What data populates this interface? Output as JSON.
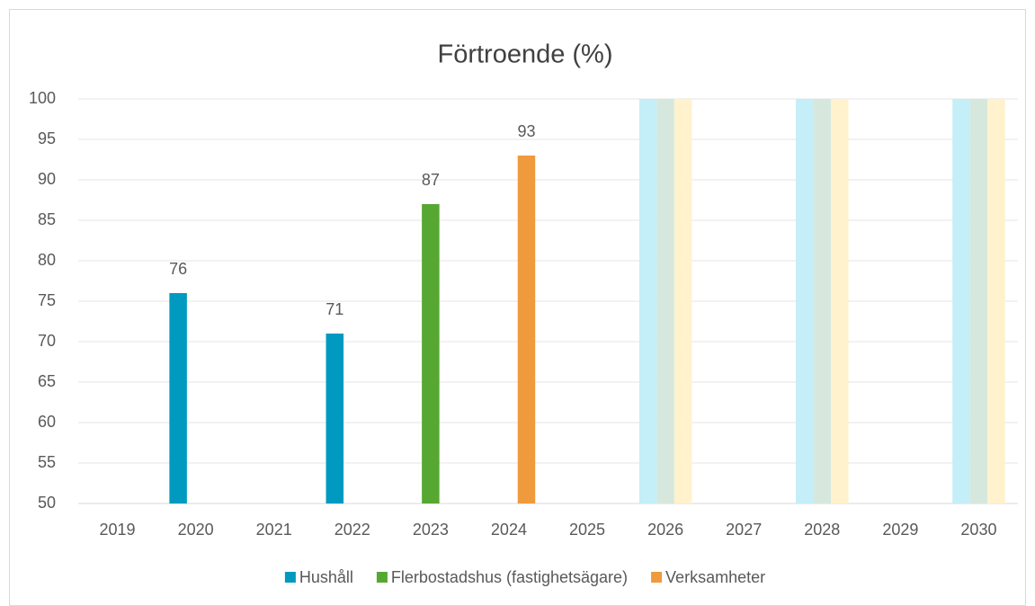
{
  "chart_data": {
    "type": "bar",
    "title": "Förtroende (%)",
    "categories": [
      "2019",
      "2020",
      "2021",
      "2022",
      "2023",
      "2024",
      "2025",
      "2026",
      "2027",
      "2028",
      "2029",
      "2030"
    ],
    "series": [
      {
        "name": "Hushåll",
        "color": "#0099bf",
        "target_color": "#c4eef8",
        "values": [
          null,
          76,
          null,
          71,
          null,
          null,
          null,
          null,
          null,
          null,
          null,
          null
        ],
        "targets": [
          null,
          null,
          null,
          null,
          null,
          null,
          null,
          100,
          null,
          100,
          null,
          100
        ]
      },
      {
        "name": "Flerbostadshus (fastighetsägare)",
        "color": "#56a833",
        "target_color": "#d6e8de",
        "values": [
          null,
          null,
          null,
          null,
          87,
          null,
          null,
          null,
          null,
          null,
          null,
          null
        ],
        "targets": [
          null,
          null,
          null,
          null,
          null,
          null,
          null,
          100,
          null,
          100,
          null,
          100
        ]
      },
      {
        "name": "Verksamheter",
        "color": "#f09a3e",
        "target_color": "#fff2cc",
        "values": [
          null,
          null,
          null,
          null,
          null,
          93,
          null,
          null,
          null,
          null,
          null,
          null
        ],
        "targets": [
          null,
          null,
          null,
          null,
          null,
          null,
          null,
          100,
          null,
          100,
          null,
          100
        ]
      }
    ],
    "ylim": [
      50,
      100
    ],
    "yticks": [
      50,
      55,
      60,
      65,
      70,
      75,
      80,
      85,
      90,
      95,
      100
    ],
    "grid": true,
    "legend": "bottom"
  }
}
